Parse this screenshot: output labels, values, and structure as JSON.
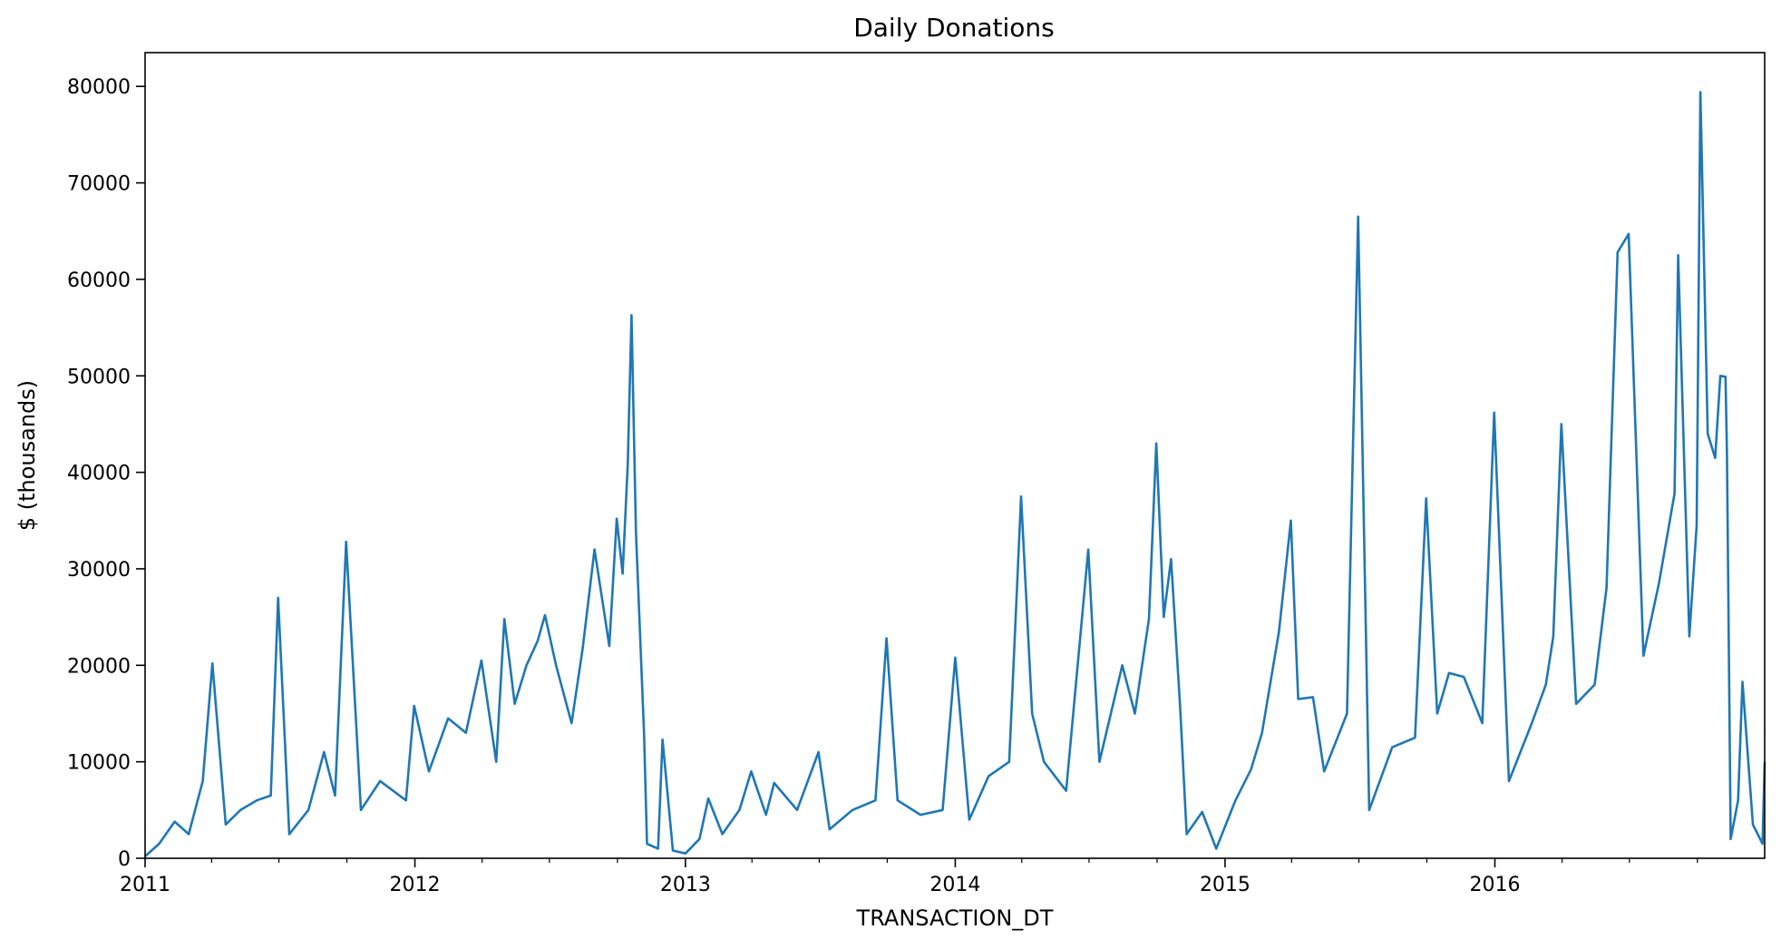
{
  "chart_data": {
    "type": "line",
    "title": "Daily Donations",
    "xlabel": "TRANSACTION_DT",
    "ylabel": "$ (thousands)",
    "x_range": [
      "2011-01-01",
      "2016-12-31"
    ],
    "ylim": [
      0,
      83500
    ],
    "x_tick_labels": [
      "2011",
      "2012",
      "2013",
      "2014",
      "2015",
      "2016"
    ],
    "x_tick_dates": [
      "2011-01-01",
      "2012-01-01",
      "2013-01-01",
      "2014-01-01",
      "2015-01-01",
      "2016-01-01"
    ],
    "y_tick_values": [
      0,
      10000,
      20000,
      30000,
      40000,
      50000,
      60000,
      70000,
      80000
    ],
    "y_tick_labels": [
      "0",
      "10000",
      "20000",
      "30000",
      "40000",
      "50000",
      "60000",
      "70000",
      "80000"
    ],
    "grid": false,
    "legend": "none",
    "series_color": "#1f77b4",
    "series": [
      {
        "points": [
          [
            "2011-01-01",
            200
          ],
          [
            "2011-01-20",
            1500
          ],
          [
            "2011-02-10",
            3800
          ],
          [
            "2011-03-01",
            2500
          ],
          [
            "2011-03-20",
            8000
          ],
          [
            "2011-04-02",
            20200
          ],
          [
            "2011-04-20",
            3500
          ],
          [
            "2011-05-10",
            5000
          ],
          [
            "2011-06-01",
            6000
          ],
          [
            "2011-06-20",
            6500
          ],
          [
            "2011-06-30",
            27000
          ],
          [
            "2011-07-15",
            2500
          ],
          [
            "2011-08-10",
            5000
          ],
          [
            "2011-08-31",
            11000
          ],
          [
            "2011-09-15",
            6500
          ],
          [
            "2011-09-30",
            32800
          ],
          [
            "2011-10-20",
            5000
          ],
          [
            "2011-11-15",
            8000
          ],
          [
            "2011-12-20",
            6000
          ],
          [
            "2011-12-31",
            15800
          ],
          [
            "2012-01-20",
            9000
          ],
          [
            "2012-02-15",
            14500
          ],
          [
            "2012-03-10",
            13000
          ],
          [
            "2012-03-31",
            20500
          ],
          [
            "2012-04-20",
            10000
          ],
          [
            "2012-05-01",
            24800
          ],
          [
            "2012-05-15",
            16000
          ],
          [
            "2012-05-31",
            20000
          ],
          [
            "2012-06-15",
            22500
          ],
          [
            "2012-06-25",
            25200
          ],
          [
            "2012-07-10",
            20000
          ],
          [
            "2012-07-31",
            14000
          ],
          [
            "2012-08-15",
            21800
          ],
          [
            "2012-08-31",
            32000
          ],
          [
            "2012-09-10",
            27000
          ],
          [
            "2012-09-20",
            22000
          ],
          [
            "2012-09-30",
            35200
          ],
          [
            "2012-10-08",
            29500
          ],
          [
            "2012-10-15",
            40900
          ],
          [
            "2012-10-20",
            56300
          ],
          [
            "2012-10-26",
            33800
          ],
          [
            "2012-11-06",
            13000
          ],
          [
            "2012-11-10",
            1500
          ],
          [
            "2012-11-25",
            1000
          ],
          [
            "2012-12-01",
            12300
          ],
          [
            "2012-12-15",
            800
          ],
          [
            "2013-01-01",
            500
          ],
          [
            "2013-01-20",
            2000
          ],
          [
            "2013-02-01",
            6200
          ],
          [
            "2013-02-20",
            2500
          ],
          [
            "2013-03-15",
            5000
          ],
          [
            "2013-03-31",
            9000
          ],
          [
            "2013-04-20",
            4500
          ],
          [
            "2013-05-01",
            7800
          ],
          [
            "2013-06-01",
            5000
          ],
          [
            "2013-06-30",
            11000
          ],
          [
            "2013-07-15",
            3000
          ],
          [
            "2013-08-15",
            5000
          ],
          [
            "2013-09-15",
            6000
          ],
          [
            "2013-09-30",
            22800
          ],
          [
            "2013-10-15",
            6000
          ],
          [
            "2013-11-15",
            4500
          ],
          [
            "2013-12-15",
            5000
          ],
          [
            "2014-01-01",
            20800
          ],
          [
            "2014-01-20",
            4000
          ],
          [
            "2014-02-15",
            8500
          ],
          [
            "2014-03-15",
            10000
          ],
          [
            "2014-03-31",
            37500
          ],
          [
            "2014-04-15",
            15000
          ],
          [
            "2014-05-01",
            10000
          ],
          [
            "2014-05-31",
            7000
          ],
          [
            "2014-06-30",
            32000
          ],
          [
            "2014-07-15",
            10000
          ],
          [
            "2014-08-15",
            20000
          ],
          [
            "2014-09-01",
            15000
          ],
          [
            "2014-09-20",
            24800
          ],
          [
            "2014-09-30",
            43000
          ],
          [
            "2014-10-10",
            25000
          ],
          [
            "2014-10-20",
            31000
          ],
          [
            "2014-11-01",
            16000
          ],
          [
            "2014-11-10",
            2500
          ],
          [
            "2014-12-01",
            4800
          ],
          [
            "2014-12-20",
            1000
          ],
          [
            "2015-01-15",
            6000
          ],
          [
            "2015-02-05",
            9200
          ],
          [
            "2015-02-20",
            13000
          ],
          [
            "2015-03-15",
            23500
          ],
          [
            "2015-03-31",
            35000
          ],
          [
            "2015-04-10",
            16500
          ],
          [
            "2015-04-30",
            16700
          ],
          [
            "2015-05-15",
            9000
          ],
          [
            "2015-06-15",
            15000
          ],
          [
            "2015-06-30",
            66500
          ],
          [
            "2015-07-15",
            5000
          ],
          [
            "2015-08-15",
            11500
          ],
          [
            "2015-09-15",
            12500
          ],
          [
            "2015-09-30",
            37300
          ],
          [
            "2015-10-15",
            15000
          ],
          [
            "2015-10-31",
            19200
          ],
          [
            "2015-11-20",
            18800
          ],
          [
            "2015-12-15",
            14000
          ],
          [
            "2015-12-31",
            46200
          ],
          [
            "2016-01-20",
            8000
          ],
          [
            "2016-02-20",
            14000
          ],
          [
            "2016-03-10",
            18000
          ],
          [
            "2016-03-20",
            23000
          ],
          [
            "2016-03-31",
            45000
          ],
          [
            "2016-04-20",
            16000
          ],
          [
            "2016-05-15",
            18000
          ],
          [
            "2016-05-31",
            28000
          ],
          [
            "2016-06-15",
            62800
          ],
          [
            "2016-06-30",
            64700
          ],
          [
            "2016-07-20",
            21000
          ],
          [
            "2016-08-10",
            28500
          ],
          [
            "2016-08-31",
            37800
          ],
          [
            "2016-09-05",
            62500
          ],
          [
            "2016-09-20",
            23000
          ],
          [
            "2016-09-30",
            34500
          ],
          [
            "2016-10-05",
            79400
          ],
          [
            "2016-10-15",
            44000
          ],
          [
            "2016-10-25",
            41500
          ],
          [
            "2016-11-01",
            50000
          ],
          [
            "2016-11-08",
            49900
          ],
          [
            "2016-11-10",
            42000
          ],
          [
            "2016-11-15",
            2000
          ],
          [
            "2016-11-25",
            6000
          ],
          [
            "2016-12-01",
            18300
          ],
          [
            "2016-12-15",
            3500
          ],
          [
            "2016-12-28",
            1500
          ],
          [
            "2016-12-31",
            10000
          ]
        ]
      }
    ]
  }
}
